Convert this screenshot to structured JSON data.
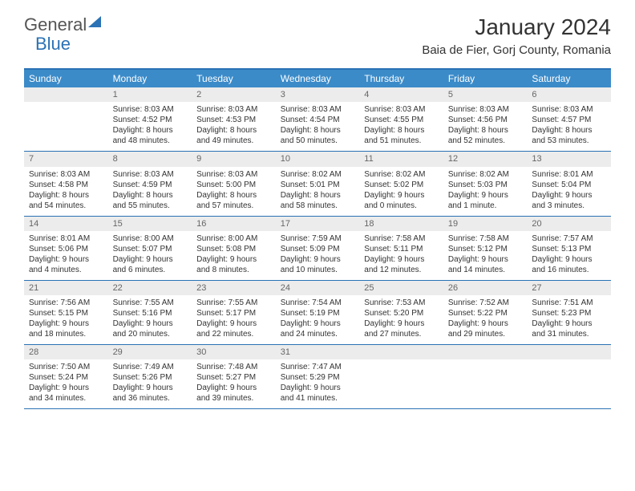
{
  "logo": {
    "word1": "General",
    "word2": "Blue"
  },
  "title": "January 2024",
  "location": "Baia de Fier, Gorj County, Romania",
  "header_bg": "#3b8bc9",
  "border_color": "#2a72b5",
  "daynum_bg": "#ececec",
  "daynames": [
    "Sunday",
    "Monday",
    "Tuesday",
    "Wednesday",
    "Thursday",
    "Friday",
    "Saturday"
  ],
  "weeks": [
    [
      null,
      {
        "n": "1",
        "sr": "Sunrise: 8:03 AM",
        "ss": "Sunset: 4:52 PM",
        "d1": "Daylight: 8 hours",
        "d2": "and 48 minutes."
      },
      {
        "n": "2",
        "sr": "Sunrise: 8:03 AM",
        "ss": "Sunset: 4:53 PM",
        "d1": "Daylight: 8 hours",
        "d2": "and 49 minutes."
      },
      {
        "n": "3",
        "sr": "Sunrise: 8:03 AM",
        "ss": "Sunset: 4:54 PM",
        "d1": "Daylight: 8 hours",
        "d2": "and 50 minutes."
      },
      {
        "n": "4",
        "sr": "Sunrise: 8:03 AM",
        "ss": "Sunset: 4:55 PM",
        "d1": "Daylight: 8 hours",
        "d2": "and 51 minutes."
      },
      {
        "n": "5",
        "sr": "Sunrise: 8:03 AM",
        "ss": "Sunset: 4:56 PM",
        "d1": "Daylight: 8 hours",
        "d2": "and 52 minutes."
      },
      {
        "n": "6",
        "sr": "Sunrise: 8:03 AM",
        "ss": "Sunset: 4:57 PM",
        "d1": "Daylight: 8 hours",
        "d2": "and 53 minutes."
      }
    ],
    [
      {
        "n": "7",
        "sr": "Sunrise: 8:03 AM",
        "ss": "Sunset: 4:58 PM",
        "d1": "Daylight: 8 hours",
        "d2": "and 54 minutes."
      },
      {
        "n": "8",
        "sr": "Sunrise: 8:03 AM",
        "ss": "Sunset: 4:59 PM",
        "d1": "Daylight: 8 hours",
        "d2": "and 55 minutes."
      },
      {
        "n": "9",
        "sr": "Sunrise: 8:03 AM",
        "ss": "Sunset: 5:00 PM",
        "d1": "Daylight: 8 hours",
        "d2": "and 57 minutes."
      },
      {
        "n": "10",
        "sr": "Sunrise: 8:02 AM",
        "ss": "Sunset: 5:01 PM",
        "d1": "Daylight: 8 hours",
        "d2": "and 58 minutes."
      },
      {
        "n": "11",
        "sr": "Sunrise: 8:02 AM",
        "ss": "Sunset: 5:02 PM",
        "d1": "Daylight: 9 hours",
        "d2": "and 0 minutes."
      },
      {
        "n": "12",
        "sr": "Sunrise: 8:02 AM",
        "ss": "Sunset: 5:03 PM",
        "d1": "Daylight: 9 hours",
        "d2": "and 1 minute."
      },
      {
        "n": "13",
        "sr": "Sunrise: 8:01 AM",
        "ss": "Sunset: 5:04 PM",
        "d1": "Daylight: 9 hours",
        "d2": "and 3 minutes."
      }
    ],
    [
      {
        "n": "14",
        "sr": "Sunrise: 8:01 AM",
        "ss": "Sunset: 5:06 PM",
        "d1": "Daylight: 9 hours",
        "d2": "and 4 minutes."
      },
      {
        "n": "15",
        "sr": "Sunrise: 8:00 AM",
        "ss": "Sunset: 5:07 PM",
        "d1": "Daylight: 9 hours",
        "d2": "and 6 minutes."
      },
      {
        "n": "16",
        "sr": "Sunrise: 8:00 AM",
        "ss": "Sunset: 5:08 PM",
        "d1": "Daylight: 9 hours",
        "d2": "and 8 minutes."
      },
      {
        "n": "17",
        "sr": "Sunrise: 7:59 AM",
        "ss": "Sunset: 5:09 PM",
        "d1": "Daylight: 9 hours",
        "d2": "and 10 minutes."
      },
      {
        "n": "18",
        "sr": "Sunrise: 7:58 AM",
        "ss": "Sunset: 5:11 PM",
        "d1": "Daylight: 9 hours",
        "d2": "and 12 minutes."
      },
      {
        "n": "19",
        "sr": "Sunrise: 7:58 AM",
        "ss": "Sunset: 5:12 PM",
        "d1": "Daylight: 9 hours",
        "d2": "and 14 minutes."
      },
      {
        "n": "20",
        "sr": "Sunrise: 7:57 AM",
        "ss": "Sunset: 5:13 PM",
        "d1": "Daylight: 9 hours",
        "d2": "and 16 minutes."
      }
    ],
    [
      {
        "n": "21",
        "sr": "Sunrise: 7:56 AM",
        "ss": "Sunset: 5:15 PM",
        "d1": "Daylight: 9 hours",
        "d2": "and 18 minutes."
      },
      {
        "n": "22",
        "sr": "Sunrise: 7:55 AM",
        "ss": "Sunset: 5:16 PM",
        "d1": "Daylight: 9 hours",
        "d2": "and 20 minutes."
      },
      {
        "n": "23",
        "sr": "Sunrise: 7:55 AM",
        "ss": "Sunset: 5:17 PM",
        "d1": "Daylight: 9 hours",
        "d2": "and 22 minutes."
      },
      {
        "n": "24",
        "sr": "Sunrise: 7:54 AM",
        "ss": "Sunset: 5:19 PM",
        "d1": "Daylight: 9 hours",
        "d2": "and 24 minutes."
      },
      {
        "n": "25",
        "sr": "Sunrise: 7:53 AM",
        "ss": "Sunset: 5:20 PM",
        "d1": "Daylight: 9 hours",
        "d2": "and 27 minutes."
      },
      {
        "n": "26",
        "sr": "Sunrise: 7:52 AM",
        "ss": "Sunset: 5:22 PM",
        "d1": "Daylight: 9 hours",
        "d2": "and 29 minutes."
      },
      {
        "n": "27",
        "sr": "Sunrise: 7:51 AM",
        "ss": "Sunset: 5:23 PM",
        "d1": "Daylight: 9 hours",
        "d2": "and 31 minutes."
      }
    ],
    [
      {
        "n": "28",
        "sr": "Sunrise: 7:50 AM",
        "ss": "Sunset: 5:24 PM",
        "d1": "Daylight: 9 hours",
        "d2": "and 34 minutes."
      },
      {
        "n": "29",
        "sr": "Sunrise: 7:49 AM",
        "ss": "Sunset: 5:26 PM",
        "d1": "Daylight: 9 hours",
        "d2": "and 36 minutes."
      },
      {
        "n": "30",
        "sr": "Sunrise: 7:48 AM",
        "ss": "Sunset: 5:27 PM",
        "d1": "Daylight: 9 hours",
        "d2": "and 39 minutes."
      },
      {
        "n": "31",
        "sr": "Sunrise: 7:47 AM",
        "ss": "Sunset: 5:29 PM",
        "d1": "Daylight: 9 hours",
        "d2": "and 41 minutes."
      },
      null,
      null,
      null
    ]
  ]
}
